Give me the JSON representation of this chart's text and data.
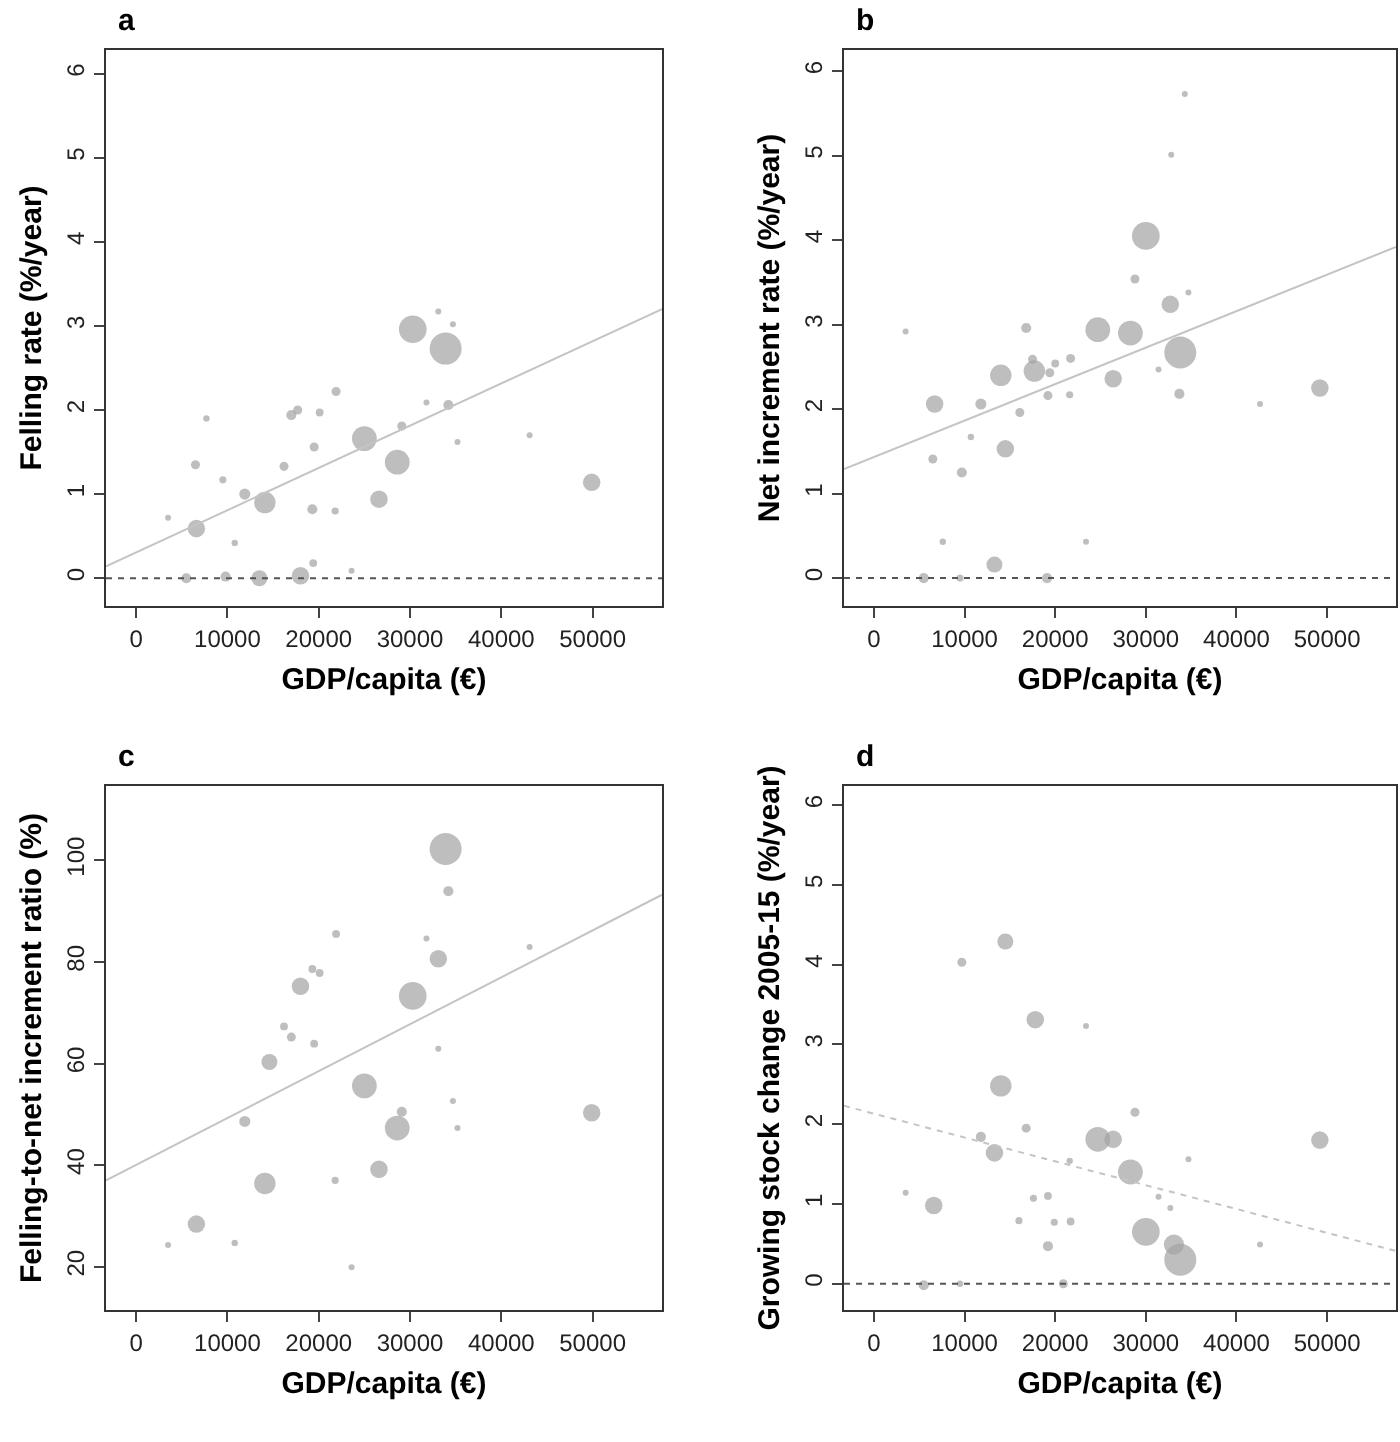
{
  "chart_data": [
    {
      "type": "bubble",
      "title": "a",
      "xlabel": "GDP/capita (€)",
      "ylabel": "Felling rate (%/year)",
      "xlim": [
        -3300,
        57600
      ],
      "xticks": [
        0,
        10000,
        20000,
        30000,
        40000,
        50000
      ],
      "ylim": [
        -0.33,
        6.28
      ],
      "yticks": [
        0,
        1,
        2,
        3,
        4,
        5,
        6
      ],
      "marker": "circle",
      "ref_lines": [
        {
          "axis": "y",
          "value": 0,
          "color": "#555555",
          "line_style": "dotted"
        }
      ],
      "series": [
        {
          "color": "#a3a3a3",
          "x": [
            3500,
            5500,
            6600,
            6500,
            7700,
            9500,
            9800,
            10800,
            11900,
            13500,
            14100,
            16200,
            17000,
            17700,
            18000,
            19300,
            19500,
            19400,
            20100,
            21800,
            21900,
            23600,
            25000,
            26600,
            28600,
            29100,
            30300,
            31800,
            33100,
            33900,
            34200,
            34700,
            35200,
            43100,
            49900
          ],
          "values": [
            0.72,
            0,
            0.59,
            1.35,
            1.9,
            1.17,
            0.02,
            0.42,
            1.0,
            0,
            0.9,
            1.33,
            1.94,
            2.0,
            0.03,
            0.82,
            1.56,
            0.18,
            1.97,
            0.8,
            2.22,
            0.09,
            1.66,
            0.94,
            1.38,
            1.81,
            2.96,
            2.09,
            3.17,
            2.73,
            2.06,
            3.02,
            1.62,
            1.7,
            1.14
          ],
          "sizes": [
            0.02,
            0.1,
            0.3,
            0.08,
            0.04,
            0.05,
            0.1,
            0.04,
            0.12,
            0.25,
            0.45,
            0.08,
            0.1,
            0.08,
            0.3,
            0.1,
            0.08,
            0.06,
            0.06,
            0.05,
            0.08,
            0.01,
            0.6,
            0.3,
            0.6,
            0.08,
            0.75,
            0.02,
            0.01,
            1.0,
            0.1,
            0.02,
            0.01,
            0.03,
            0.3
          ]
        },
        {
          "type": "line",
          "marker": "none",
          "color": "#c4c4c4",
          "line_style": "solid",
          "x": [
            -3300,
            57600
          ],
          "values": [
            0.14,
            3.2
          ]
        }
      ]
    },
    {
      "type": "bubble",
      "title": "b",
      "xlabel": "GDP/capita (€)",
      "ylabel": "Net increment rate (%/year)",
      "xlim": [
        -3300,
        57600
      ],
      "xticks": [
        0,
        10000,
        20000,
        30000,
        40000,
        50000
      ],
      "ylim": [
        -0.33,
        6.25
      ],
      "yticks": [
        0,
        1,
        2,
        3,
        4,
        5,
        6
      ],
      "marker": "circle",
      "ref_lines": [
        {
          "axis": "y",
          "value": 0,
          "color": "#555555",
          "line_style": "dotted"
        }
      ],
      "series": [
        {
          "color": "#a3a3a3",
          "x": [
            3500,
            5500,
            6700,
            6500,
            7600,
            9500,
            9700,
            10700,
            11800,
            13300,
            14000,
            14500,
            16100,
            16800,
            17500,
            17700,
            19100,
            19200,
            19400,
            20000,
            21600,
            21700,
            23400,
            24700,
            26400,
            28300,
            28800,
            30000,
            31400,
            32700,
            32800,
            33800,
            33700,
            34300,
            34700,
            42600,
            49200
          ],
          "values": [
            2.92,
            0,
            2.06,
            1.41,
            0.43,
            0,
            1.25,
            1.67,
            2.06,
            0.16,
            2.4,
            1.53,
            1.96,
            2.96,
            2.59,
            2.45,
            0,
            2.16,
            2.43,
            2.54,
            2.17,
            2.6,
            0.43,
            2.94,
            2.36,
            2.9,
            3.54,
            4.05,
            2.47,
            3.24,
            5.01,
            2.67,
            2.18,
            5.73,
            3.38,
            2.06,
            2.25
          ],
          "sizes": [
            0.02,
            0.1,
            0.3,
            0.08,
            0.04,
            0.05,
            0.1,
            0.04,
            0.12,
            0.25,
            0.45,
            0.3,
            0.08,
            0.1,
            0.08,
            0.45,
            0.1,
            0.08,
            0.08,
            0.06,
            0.05,
            0.08,
            0.01,
            0.6,
            0.3,
            0.6,
            0.08,
            0.75,
            0.02,
            0.3,
            0.01,
            1.0,
            0.1,
            0.02,
            0.01,
            0.03,
            0.3
          ]
        },
        {
          "type": "line",
          "marker": "none",
          "color": "#c4c4c4",
          "line_style": "solid",
          "x": [
            -3300,
            57600
          ],
          "values": [
            1.29,
            3.92
          ]
        }
      ]
    },
    {
      "type": "bubble",
      "title": "c",
      "xlabel": "GDP/capita (€)",
      "ylabel": "Felling-to-net increment ratio (%)",
      "xlim": [
        -3300,
        57600
      ],
      "xticks": [
        0,
        10000,
        20000,
        30000,
        40000,
        50000
      ],
      "ylim": [
        11.5,
        114.6
      ],
      "yticks": [
        20,
        40,
        60,
        80,
        100
      ],
      "marker": "circle",
      "series": [
        {
          "color": "#a3a3a3",
          "x": [
            3500,
            6600,
            10800,
            11900,
            14100,
            14600,
            16200,
            17000,
            18000,
            19300,
            20100,
            19500,
            21800,
            21900,
            23600,
            25000,
            26600,
            28600,
            29100,
            30300,
            31800,
            33100,
            33100,
            33900,
            34200,
            34700,
            35200,
            43100,
            49900
          ],
          "values": [
            24.3,
            28.4,
            24.7,
            48.6,
            36.4,
            60.3,
            67.3,
            65.2,
            75.2,
            78.6,
            77.8,
            63.9,
            37.0,
            85.5,
            19.9,
            55.6,
            39.2,
            47.3,
            50.5,
            73.3,
            84.6,
            62.9,
            80.6,
            102.2,
            93.9,
            52.6,
            47.3,
            82.9,
            50.3
          ],
          "sizes": [
            0.02,
            0.3,
            0.04,
            0.12,
            0.45,
            0.25,
            0.06,
            0.08,
            0.3,
            0.06,
            0.06,
            0.06,
            0.05,
            0.06,
            0.01,
            0.6,
            0.3,
            0.6,
            0.1,
            0.75,
            0.02,
            0.01,
            0.3,
            1.0,
            0.1,
            0.02,
            0.01,
            0.03,
            0.3
          ]
        },
        {
          "type": "line",
          "marker": "none",
          "color": "#c4c4c4",
          "line_style": "solid",
          "x": [
            -3300,
            57600
          ],
          "values": [
            37,
            93.2
          ]
        }
      ]
    },
    {
      "type": "bubble",
      "title": "d",
      "xlabel": "GDP/capita (€)",
      "ylabel": "Growing stock change 2005-15 (%/year)",
      "xlim": [
        -3300,
        57600
      ],
      "xticks": [
        0,
        10000,
        20000,
        30000,
        40000,
        50000
      ],
      "ylim": [
        -0.33,
        6.24
      ],
      "yticks": [
        0,
        1,
        2,
        3,
        4,
        5,
        6
      ],
      "marker": "circle",
      "ref_lines": [
        {
          "axis": "y",
          "value": 0,
          "color": "#555555",
          "line_style": "dotted"
        }
      ],
      "series": [
        {
          "color": "#a3a3a3",
          "x": [
            3500,
            5500,
            6600,
            9500,
            9700,
            11800,
            13300,
            14000,
            14500,
            16000,
            16800,
            17600,
            17800,
            19200,
            19200,
            19900,
            20900,
            21600,
            21700,
            23400,
            24700,
            26400,
            28300,
            28800,
            30000,
            31400,
            32700,
            33100,
            33800,
            34700,
            42600,
            49200
          ],
          "values": [
            1.14,
            -0.02,
            0.98,
            0,
            4.03,
            1.84,
            1.64,
            2.48,
            4.29,
            0.79,
            1.95,
            1.07,
            3.31,
            1.1,
            0.47,
            0.77,
            0,
            1.54,
            0.78,
            3.23,
            1.81,
            1.81,
            1.4,
            2.15,
            0.65,
            1.09,
            0.95,
            0.49,
            0.3,
            1.56,
            0.49,
            1.8
          ],
          "sizes": [
            0.02,
            0.1,
            0.3,
            0.04,
            0.08,
            0.1,
            0.3,
            0.45,
            0.25,
            0.05,
            0.08,
            0.05,
            0.3,
            0.06,
            0.1,
            0.05,
            0.08,
            0.04,
            0.06,
            0.01,
            0.6,
            0.3,
            0.6,
            0.08,
            0.75,
            0.02,
            0.02,
            0.4,
            1.0,
            0.01,
            0.03,
            0.3
          ]
        },
        {
          "type": "line",
          "marker": "none",
          "color": "#c4c4c4",
          "line_style": "dotted",
          "x": [
            -3300,
            57600
          ],
          "values": [
            2.23,
            0.41
          ]
        }
      ]
    }
  ]
}
